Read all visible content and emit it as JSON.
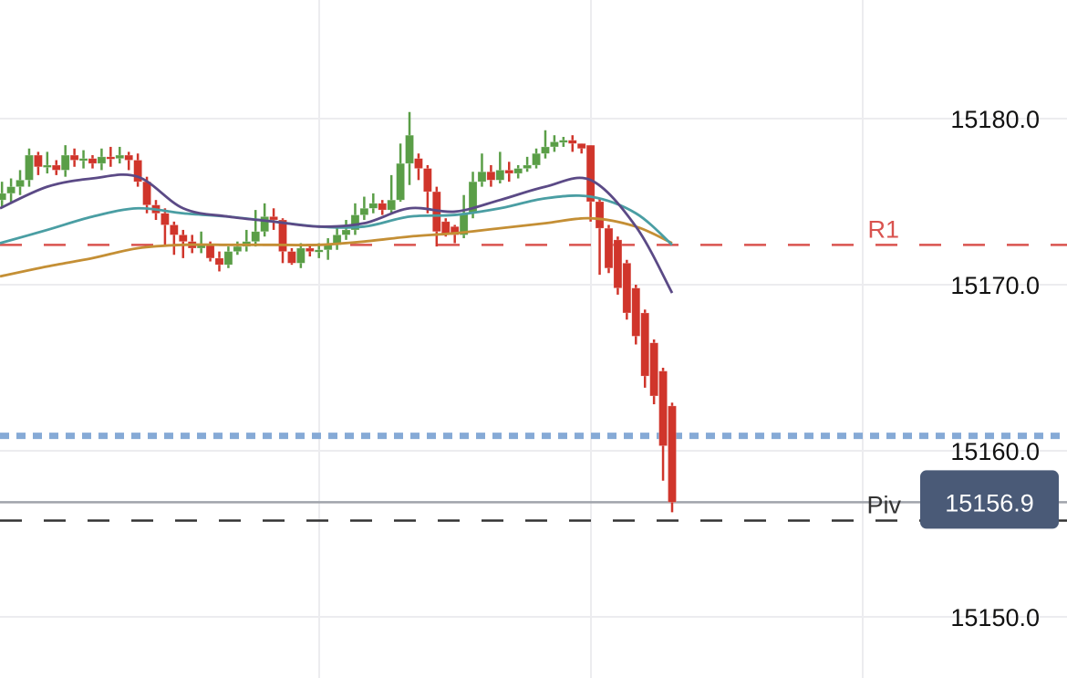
{
  "chart_data": {
    "type": "candlestick",
    "y_ticks": [
      "15180.0",
      "15170.0",
      "15160.0",
      "15150.0"
    ],
    "y_tick_values": [
      15180,
      15170,
      15160,
      15150
    ],
    "ylim": [
      15143.7,
      15186.8
    ],
    "grid": true,
    "colors": {
      "up": "#5a9e47",
      "down": "#d0352b",
      "ma_fast": "#5b4a86",
      "ma_mid": "#4a9ea3",
      "ma_slow": "#c48f35",
      "r1": "#d9534f",
      "level_blue": "#86aad6",
      "price_box": "#4a5a77",
      "piv": "#333333",
      "price_line": "#a0a4ab"
    },
    "candles": [
      [
        15175.1,
        15176.2,
        15174.7,
        15175.5
      ],
      [
        15175.5,
        15176.4,
        15174.9,
        15175.9
      ],
      [
        15175.9,
        15176.9,
        15175.4,
        15176.3
      ],
      [
        15176.3,
        15178.2,
        15175.9,
        15177.8
      ],
      [
        15177.8,
        15178.0,
        15176.6,
        15177.1
      ],
      [
        15177.1,
        15178.0,
        15176.7,
        15177.2
      ],
      [
        15177.2,
        15177.5,
        15176.6,
        15176.9
      ],
      [
        15176.9,
        15178.4,
        15176.5,
        15177.8
      ],
      [
        15177.8,
        15178.2,
        15177.1,
        15177.5
      ],
      [
        15177.5,
        15178.1,
        15177.0,
        15177.6
      ],
      [
        15177.6,
        15177.8,
        15177.0,
        15177.3
      ],
      [
        15177.3,
        15178.2,
        15176.9,
        15177.7
      ],
      [
        15177.7,
        15178.3,
        15177.1,
        15177.6
      ],
      [
        15177.6,
        15178.3,
        15177.3,
        15177.8
      ],
      [
        15177.8,
        15178.0,
        15176.9,
        15177.5
      ],
      [
        15177.5,
        15177.9,
        15175.9,
        15176.2
      ],
      [
        15176.2,
        15176.5,
        15174.3,
        15174.8
      ],
      [
        15174.8,
        15175.1,
        15173.9,
        15174.3
      ],
      [
        15174.3,
        15174.6,
        15172.3,
        15173.6
      ],
      [
        15173.6,
        15173.8,
        15171.8,
        15173.0
      ],
      [
        15173.0,
        15173.3,
        15171.6,
        15172.6
      ],
      [
        15172.6,
        15173.0,
        15171.9,
        15172.2
      ],
      [
        15172.2,
        15173.2,
        15171.9,
        15172.4
      ],
      [
        15172.4,
        15172.6,
        15171.4,
        15171.6
      ],
      [
        15171.6,
        15172.0,
        15170.8,
        15171.2
      ],
      [
        15171.2,
        15172.3,
        15171.0,
        15172.0
      ],
      [
        15172.0,
        15172.6,
        15171.8,
        15172.3
      ],
      [
        15172.3,
        15173.3,
        15172.0,
        15172.6
      ],
      [
        15172.6,
        15174.5,
        15172.3,
        15173.2
      ],
      [
        15173.2,
        15174.9,
        15172.9,
        15174.1
      ],
      [
        15174.1,
        15174.6,
        15173.3,
        15173.9
      ],
      [
        15173.9,
        15174.0,
        15171.3,
        15172.0
      ],
      [
        15172.0,
        15172.2,
        15171.2,
        15171.3
      ],
      [
        15171.3,
        15172.5,
        15171.0,
        15172.2
      ],
      [
        15172.2,
        15172.4,
        15171.7,
        15172.0
      ],
      [
        15172.0,
        15172.5,
        15171.6,
        15172.1
      ],
      [
        15172.1,
        15172.8,
        15171.5,
        15172.4
      ],
      [
        15172.4,
        15173.4,
        15172.1,
        15173.0
      ],
      [
        15173.0,
        15173.9,
        15172.7,
        15173.3
      ],
      [
        15173.3,
        15174.9,
        15173.0,
        15174.2
      ],
      [
        15174.2,
        15175.3,
        15173.9,
        15174.6
      ],
      [
        15174.6,
        15175.5,
        15174.3,
        15174.9
      ],
      [
        15174.9,
        15175.1,
        15174.2,
        15174.5
      ],
      [
        15174.5,
        15176.6,
        15174.3,
        15175.1
      ],
      [
        15175.1,
        15178.5,
        15175.0,
        15177.3
      ],
      [
        15177.3,
        15180.4,
        15176.0,
        15179.0
      ],
      [
        15177.6,
        15177.9,
        15176.3,
        15177.0
      ],
      [
        15177.0,
        15177.2,
        15174.3,
        15175.6
      ],
      [
        15175.6,
        15175.9,
        15172.3,
        15173.2
      ],
      [
        15173.8,
        15174.0,
        15172.9,
        15173.0
      ],
      [
        15173.5,
        15173.6,
        15172.5,
        15173.0
      ],
      [
        15173.0,
        15175.4,
        15172.8,
        15174.3
      ],
      [
        15174.3,
        15176.8,
        15174.0,
        15176.2
      ],
      [
        15176.2,
        15177.9,
        15175.9,
        15176.8
      ],
      [
        15176.8,
        15177.2,
        15175.9,
        15176.3
      ],
      [
        15176.3,
        15178.0,
        15176.1,
        15176.9
      ],
      [
        15176.9,
        15177.4,
        15176.2,
        15176.7
      ],
      [
        15176.7,
        15177.2,
        15176.4,
        15177.0
      ],
      [
        15177.0,
        15177.7,
        15176.8,
        15177.2
      ],
      [
        15177.2,
        15178.2,
        15177.0,
        15177.9
      ],
      [
        15177.9,
        15179.3,
        15177.6,
        15178.3
      ],
      [
        15178.3,
        15179.0,
        15178.0,
        15178.6
      ],
      [
        15178.6,
        15178.9,
        15178.3,
        15178.7
      ],
      [
        15178.7,
        15179.0,
        15178.0,
        15178.5
      ],
      [
        15178.5,
        15178.5,
        15177.9,
        15178.2
      ],
      [
        15178.4,
        15178.4,
        15173.8,
        15175.0
      ],
      [
        15175.0,
        15175.2,
        15170.6,
        15173.4
      ],
      [
        15173.4,
        15173.6,
        15170.7,
        15171.0
      ],
      [
        15172.7,
        15172.9,
        15169.4,
        15169.8
      ],
      [
        15171.3,
        15171.5,
        15167.9,
        15168.3
      ],
      [
        15169.8,
        15170.0,
        15166.4,
        15166.9
      ],
      [
        15168.3,
        15168.5,
        15163.8,
        15164.5
      ],
      [
        15166.5,
        15166.7,
        15162.8,
        15163.3
      ],
      [
        15164.8,
        15165.0,
        15158.2,
        15160.3
      ],
      [
        15162.7,
        15162.9,
        15156.3,
        15156.9
      ]
    ],
    "moving_averages": {
      "sample_index": [
        0,
        5,
        10,
        15,
        20,
        25,
        30,
        35,
        40,
        45,
        50,
        55,
        60,
        65,
        70,
        74
      ],
      "fast": [
        15174.6,
        15175.9,
        15176.4,
        15176.5,
        15174.6,
        15174.1,
        15173.8,
        15173.5,
        15173.7,
        15174.6,
        15174.4,
        15175.1,
        15175.9,
        15176.3,
        15173.5,
        15169.5
      ],
      "mid": [
        15172.5,
        15173.3,
        15174.1,
        15174.6,
        15174.3,
        15174.1,
        15173.8,
        15173.5,
        15173.5,
        15174.1,
        15174.2,
        15174.6,
        15175.2,
        15175.3,
        15174.3,
        15172.4
      ],
      "slow": [
        15170.5,
        15171.1,
        15171.6,
        15172.2,
        15172.4,
        15172.4,
        15172.4,
        15172.4,
        15172.6,
        15172.9,
        15173.1,
        15173.4,
        15173.7,
        15174.0,
        15173.5,
        15172.5
      ]
    },
    "levels": {
      "r1": {
        "label": "R1",
        "value": 15172.4
      },
      "blue_dotted": {
        "value": 15160.9
      },
      "piv": {
        "label": "Piv",
        "value": 15155.8
      },
      "last_price": {
        "label": "15156.9",
        "value": 15156.9
      }
    }
  }
}
